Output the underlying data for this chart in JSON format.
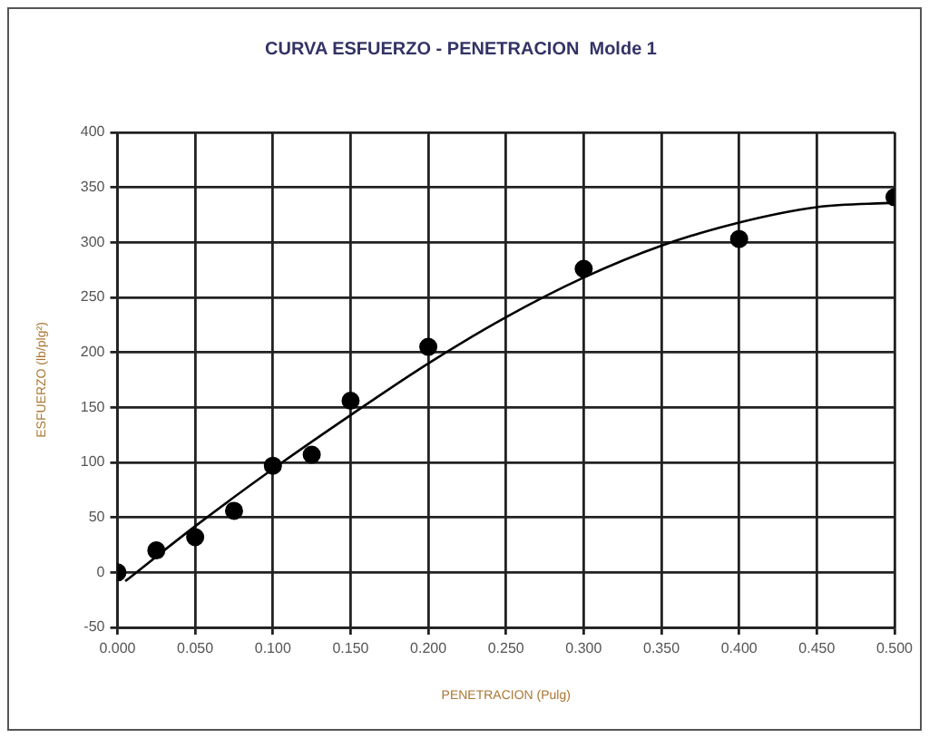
{
  "chart_data": {
    "type": "scatter",
    "title": "CURVA ESFUERZO - PENETRACION  Molde 1",
    "xlabel": "PENETRACION (Pulg)",
    "ylabel": "ESFUERZO (lb/plg²)",
    "xlim": [
      0,
      0.5
    ],
    "xticks": [
      {
        "value": 0,
        "label": "0.000"
      },
      {
        "value": 0.05,
        "label": "0.050"
      },
      {
        "value": 0.1,
        "label": "0.100"
      },
      {
        "value": 0.15,
        "label": "0.150"
      },
      {
        "value": 0.2,
        "label": "0.200"
      },
      {
        "value": 0.25,
        "label": "0.250"
      },
      {
        "value": 0.3,
        "label": "0.300"
      },
      {
        "value": 0.35,
        "label": "0.350"
      },
      {
        "value": 0.4,
        "label": "0.400"
      },
      {
        "value": 0.45,
        "label": "0.450"
      },
      {
        "value": 0.5,
        "label": "0.500"
      }
    ],
    "ylim": [
      -50,
      400
    ],
    "yticks": [
      -50,
      0,
      50,
      100,
      150,
      200,
      250,
      300,
      350,
      400
    ],
    "grid": true,
    "legend": false,
    "series": [
      {
        "marker": "circle",
        "color": "#000000",
        "x": [
          0,
          0.025,
          0.05,
          0.075,
          0.1,
          0.125,
          0.15,
          0.2,
          0.3,
          0.4,
          0.5
        ],
        "values": [
          0,
          20,
          32,
          56,
          97,
          107,
          156,
          205,
          276,
          303,
          341
        ]
      },
      {
        "type": "line",
        "marker": "none",
        "color": "#000000",
        "x": [
          0.005,
          0.05,
          0.1,
          0.15,
          0.2,
          0.25,
          0.3,
          0.35,
          0.4,
          0.45,
          0.5
        ],
        "values": [
          -8,
          42,
          94,
          143,
          190,
          232,
          268,
          297,
          318,
          332,
          336
        ]
      }
    ]
  }
}
